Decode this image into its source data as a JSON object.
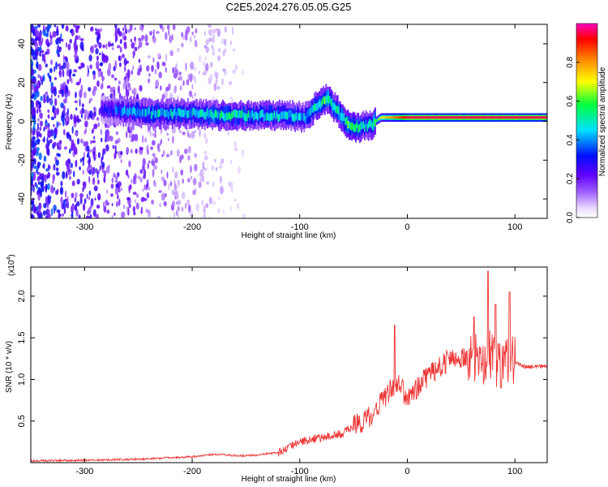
{
  "title": "C2E5.2024.276.05.05.G25",
  "chart_data": [
    {
      "type": "heatmap",
      "xlabel": "Height of straight line (km)",
      "ylabel": "Frequency (Hz)",
      "xlim": [
        -350,
        130
      ],
      "ylim": [
        -50,
        50
      ],
      "x_ticks": [
        -300,
        -200,
        -100,
        0,
        100
      ],
      "y_ticks": [
        -40,
        -20,
        0,
        20,
        40
      ],
      "colorbar": {
        "label": "Normalized spectral amplitude",
        "range": [
          0,
          1
        ],
        "ticks": [
          "0.0",
          "0.2",
          "0.4",
          "0.6",
          "0.8"
        ],
        "colors": [
          "#ffffff",
          "#b084ff",
          "#7a00ff",
          "#0000ff",
          "#00e0ff",
          "#00ff40",
          "#ffff00",
          "#ff8000",
          "#ff0000",
          "#ff00c0"
        ]
      },
      "ridge": {
        "x": [
          -285,
          -260,
          -230,
          -200,
          -170,
          -140,
          -110,
          -95,
          -85,
          -75,
          -65,
          -55,
          -45,
          -35,
          -25,
          0,
          50,
          100,
          130
        ],
        "frequency": [
          6,
          5,
          4,
          4,
          3,
          3,
          3,
          2,
          8,
          12,
          5,
          -2,
          -3,
          -2,
          2,
          2,
          2,
          2,
          2
        ],
        "peak_amplitude": [
          0.25,
          0.4,
          0.45,
          0.45,
          0.5,
          0.45,
          0.45,
          0.4,
          0.5,
          0.55,
          0.5,
          0.55,
          0.5,
          0.45,
          0.7,
          0.95,
          0.95,
          0.95,
          0.95
        ]
      }
    },
    {
      "type": "line",
      "xlabel": "Height of straight line (km)",
      "ylabel": "SNR (10 * v/v)",
      "scale_label": "(x10",
      "scale_exponent": "4",
      "xlim": [
        -350,
        130
      ],
      "ylim": [
        0,
        2.35
      ],
      "x_ticks": [
        -300,
        -200,
        -100,
        0,
        100
      ],
      "y_ticks": [
        "0.5",
        "1.0",
        "1.5",
        "2.0"
      ],
      "color": "#ee3333",
      "series": [
        {
          "x": [
            -350,
            -300,
            -250,
            -200,
            -180,
            -150,
            -120,
            -100,
            -80,
            -60,
            -50,
            -40,
            -30,
            -20,
            -10,
            0,
            10,
            20,
            30,
            40,
            50,
            60,
            70,
            75,
            80,
            90,
            100,
            110,
            120,
            130
          ],
          "values": [
            0.02,
            0.03,
            0.04,
            0.07,
            0.1,
            0.08,
            0.12,
            0.25,
            0.3,
            0.35,
            0.45,
            0.5,
            0.6,
            0.8,
            0.95,
            0.8,
            0.9,
            1.05,
            1.15,
            1.25,
            1.25,
            1.3,
            1.15,
            1.4,
            1.2,
            1.2,
            1.2,
            1.15,
            1.15,
            1.17
          ],
          "spikes": [
            {
              "x": -12,
              "value": 1.65
            },
            {
              "x": 62,
              "value": 1.75
            },
            {
              "x": 75,
              "value": 2.3
            },
            {
              "x": 82,
              "value": 1.9
            },
            {
              "x": 95,
              "value": 2.05
            }
          ]
        }
      ]
    }
  ]
}
